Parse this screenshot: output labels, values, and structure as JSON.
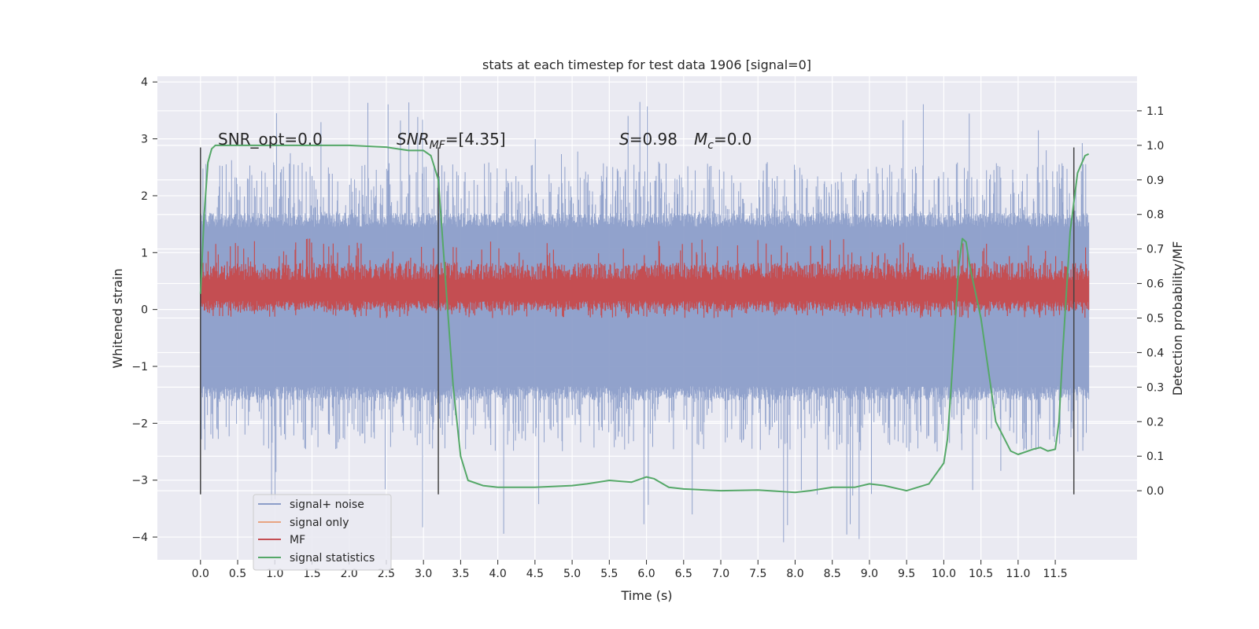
{
  "chart_data": {
    "type": "line",
    "title": "stats at each timestep for test data 1906 [signal=0]",
    "xlabel": "Time (s)",
    "ylabel": "Whitened strain",
    "ylabel_right": "Detection probability/MF",
    "xlim": [
      -0.58,
      12.6
    ],
    "ylim": [
      -4.4,
      4.1
    ],
    "ylim_right": [
      -0.2,
      1.2
    ],
    "x_ticks": [
      0.0,
      0.5,
      1.0,
      1.5,
      2.0,
      2.5,
      3.0,
      3.5,
      4.0,
      4.5,
      5.0,
      5.5,
      6.0,
      6.5,
      7.0,
      7.5,
      8.0,
      8.5,
      9.0,
      9.5,
      10.0,
      10.5,
      11.0,
      11.5
    ],
    "x_tick_labels": [
      "0.0",
      "0.5",
      "1.0",
      "1.5",
      "2.0",
      "2.5",
      "3.0",
      "3.5",
      "4.0",
      "4.5",
      "5.0",
      "5.5",
      "6.0",
      "6.5",
      "7.0",
      "7.5",
      "8.0",
      "8.5",
      "9.0",
      "9.5",
      "10.0",
      "10.5",
      "11.0",
      "11.5"
    ],
    "y_ticks": [
      -4,
      -3,
      -2,
      -1,
      0,
      1,
      2,
      3,
      4
    ],
    "y_tick_labels": [
      "−4",
      "−3",
      "−2",
      "−1",
      "0",
      "1",
      "2",
      "3",
      "4"
    ],
    "y_ticks_right": [
      0.0,
      0.1,
      0.2,
      0.3,
      0.4,
      0.5,
      0.6,
      0.7,
      0.8,
      0.9,
      1.0,
      1.1
    ],
    "y_tick_labels_right": [
      "0.0",
      "0.1",
      "0.2",
      "0.3",
      "0.4",
      "0.5",
      "0.6",
      "0.7",
      "0.8",
      "0.9",
      "1.0",
      "1.1"
    ],
    "grid": true,
    "legend_position": "lower-left",
    "annotations": {
      "snr_opt": "SNR_opt=0.0",
      "snr_mf": "SNR",
      "snr_mf_sub": "MF",
      "snr_mf_tail": "=[4.35]",
      "s_stat": "S",
      "s_stat_tail": "=0.98",
      "mc": "M",
      "mc_sub": "c",
      "mc_tail": "=0.0"
    },
    "vertical_markers_s": [
      0.0,
      3.2,
      11.75
    ],
    "series": [
      {
        "name": "signal+ noise",
        "color": "#8c9ec9",
        "axis": "left",
        "t_range": [
          0.0,
          11.95
        ],
        "band_typical": [
          -1.6,
          1.7
        ],
        "band_extreme": [
          -4.1,
          3.7
        ]
      },
      {
        "name": "signal only",
        "color": "#e8a482",
        "axis": "left",
        "values": []
      },
      {
        "name": "MF",
        "color": "#c44e52",
        "axis": "right",
        "t_range": [
          0.0,
          11.95
        ],
        "band_typical": [
          0.52,
          0.66
        ],
        "band_extreme": [
          0.5,
          0.73
        ]
      },
      {
        "name": "signal statistics",
        "color": "#55a868",
        "axis": "right",
        "x": [
          0.0,
          0.05,
          0.1,
          0.15,
          0.2,
          0.3,
          0.5,
          1.0,
          2.0,
          2.5,
          2.8,
          3.0,
          3.1,
          3.2,
          3.3,
          3.4,
          3.5,
          3.6,
          3.8,
          4.0,
          4.5,
          5.0,
          5.2,
          5.5,
          5.8,
          6.0,
          6.1,
          6.3,
          6.5,
          7.0,
          7.5,
          8.0,
          8.2,
          8.5,
          8.8,
          9.0,
          9.2,
          9.5,
          9.8,
          10.0,
          10.05,
          10.1,
          10.2,
          10.25,
          10.3,
          10.35,
          10.5,
          10.7,
          10.9,
          11.0,
          11.2,
          11.3,
          11.4,
          11.5,
          11.55,
          11.6,
          11.7,
          11.8,
          11.9,
          11.95
        ],
        "y": [
          0.57,
          0.8,
          0.95,
          0.99,
          1.0,
          1.0,
          1.0,
          1.0,
          1.0,
          0.995,
          0.985,
          0.985,
          0.97,
          0.9,
          0.6,
          0.3,
          0.1,
          0.03,
          0.015,
          0.01,
          0.01,
          0.015,
          0.02,
          0.03,
          0.025,
          0.04,
          0.035,
          0.01,
          0.005,
          0.0,
          0.002,
          -0.005,
          0.0,
          0.01,
          0.01,
          0.02,
          0.015,
          0.0,
          0.02,
          0.08,
          0.15,
          0.3,
          0.65,
          0.73,
          0.72,
          0.65,
          0.5,
          0.2,
          0.115,
          0.105,
          0.12,
          0.125,
          0.115,
          0.12,
          0.2,
          0.4,
          0.75,
          0.92,
          0.97,
          0.975
        ]
      }
    ]
  }
}
